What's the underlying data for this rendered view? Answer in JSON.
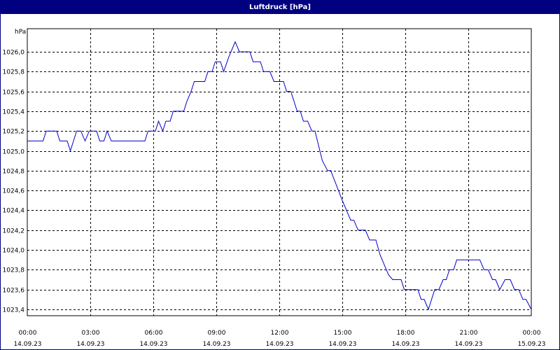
{
  "window": {
    "title": "Luftdruck [hPa]"
  },
  "colors": {
    "title_bar": "#000080",
    "series_line": "#0000cc",
    "grid": "#000000",
    "background": "#ffffff"
  },
  "chart_data": {
    "type": "line",
    "title": "Luftdruck [hPa]",
    "ylabel": "hPa",
    "xlabel": "",
    "ylim": [
      1023.3,
      1026.2
    ],
    "xlim": [
      "14.09.23 00:00",
      "15.09.23 00:00"
    ],
    "grid": true,
    "legend": "none",
    "y_ticks": [
      {
        "value": 1023.4,
        "label": "1023,4"
      },
      {
        "value": 1023.6,
        "label": "1023,6"
      },
      {
        "value": 1023.8,
        "label": "1023,8"
      },
      {
        "value": 1024.0,
        "label": "1024,0"
      },
      {
        "value": 1024.2,
        "label": "1024,2"
      },
      {
        "value": 1024.4,
        "label": "1024,4"
      },
      {
        "value": 1024.6,
        "label": "1024,6"
      },
      {
        "value": 1024.8,
        "label": "1024,8"
      },
      {
        "value": 1025.0,
        "label": "1025,0"
      },
      {
        "value": 1025.2,
        "label": "1025,2"
      },
      {
        "value": 1025.4,
        "label": "1025,4"
      },
      {
        "value": 1025.6,
        "label": "1025,6"
      },
      {
        "value": 1025.8,
        "label": "1025,8"
      },
      {
        "value": 1026.0,
        "label": "1026,0"
      }
    ],
    "x_ticks": [
      {
        "hour": 0,
        "time": "00:00",
        "date": "14.09.23"
      },
      {
        "hour": 3,
        "time": "03:00",
        "date": "14.09.23"
      },
      {
        "hour": 6,
        "time": "06:00",
        "date": "14.09.23"
      },
      {
        "hour": 9,
        "time": "09:00",
        "date": "14.09.23"
      },
      {
        "hour": 12,
        "time": "12:00",
        "date": "14.09.23"
      },
      {
        "hour": 15,
        "time": "15:00",
        "date": "14.09.23"
      },
      {
        "hour": 18,
        "time": "18:00",
        "date": "14.09.23"
      },
      {
        "hour": 21,
        "time": "21:00",
        "date": "14.09.23"
      },
      {
        "hour": 24,
        "time": "00:00",
        "date": "15.09.23"
      }
    ],
    "series": [
      {
        "color": "#0000cc",
        "points": [
          [
            0.0,
            1025.1
          ],
          [
            0.75,
            1025.1
          ],
          [
            0.9,
            1025.2
          ],
          [
            1.4,
            1025.2
          ],
          [
            1.55,
            1025.1
          ],
          [
            1.9,
            1025.1
          ],
          [
            2.05,
            1025.0
          ],
          [
            2.35,
            1025.2
          ],
          [
            2.55,
            1025.2
          ],
          [
            2.75,
            1025.1
          ],
          [
            2.95,
            1025.2
          ],
          [
            3.3,
            1025.2
          ],
          [
            3.45,
            1025.1
          ],
          [
            3.65,
            1025.1
          ],
          [
            3.8,
            1025.2
          ],
          [
            4.0,
            1025.1
          ],
          [
            5.6,
            1025.1
          ],
          [
            5.75,
            1025.2
          ],
          [
            6.1,
            1025.2
          ],
          [
            6.25,
            1025.3
          ],
          [
            6.45,
            1025.2
          ],
          [
            6.6,
            1025.3
          ],
          [
            6.8,
            1025.3
          ],
          [
            6.95,
            1025.4
          ],
          [
            7.45,
            1025.4
          ],
          [
            7.6,
            1025.5
          ],
          [
            7.8,
            1025.6
          ],
          [
            7.95,
            1025.7
          ],
          [
            8.45,
            1025.7
          ],
          [
            8.6,
            1025.8
          ],
          [
            8.8,
            1025.8
          ],
          [
            8.95,
            1025.9
          ],
          [
            9.2,
            1025.9
          ],
          [
            9.35,
            1025.8
          ],
          [
            9.6,
            1025.95
          ],
          [
            9.9,
            1026.1
          ],
          [
            10.1,
            1026.0
          ],
          [
            10.6,
            1026.0
          ],
          [
            10.75,
            1025.9
          ],
          [
            11.1,
            1025.9
          ],
          [
            11.25,
            1025.8
          ],
          [
            11.55,
            1025.8
          ],
          [
            11.75,
            1025.7
          ],
          [
            12.2,
            1025.7
          ],
          [
            12.35,
            1025.6
          ],
          [
            12.55,
            1025.6
          ],
          [
            12.85,
            1025.4
          ],
          [
            13.0,
            1025.4
          ],
          [
            13.15,
            1025.3
          ],
          [
            13.35,
            1025.3
          ],
          [
            13.55,
            1025.2
          ],
          [
            13.7,
            1025.2
          ],
          [
            14.05,
            1024.9
          ],
          [
            14.3,
            1024.8
          ],
          [
            14.45,
            1024.8
          ],
          [
            15.0,
            1024.5
          ],
          [
            15.4,
            1024.3
          ],
          [
            15.55,
            1024.3
          ],
          [
            15.75,
            1024.2
          ],
          [
            16.1,
            1024.2
          ],
          [
            16.3,
            1024.1
          ],
          [
            16.6,
            1024.1
          ],
          [
            16.8,
            1023.95
          ],
          [
            17.2,
            1023.75
          ],
          [
            17.4,
            1023.7
          ],
          [
            17.8,
            1023.7
          ],
          [
            17.95,
            1023.6
          ],
          [
            18.6,
            1023.6
          ],
          [
            18.75,
            1023.5
          ],
          [
            18.9,
            1023.5
          ],
          [
            19.1,
            1023.4
          ],
          [
            19.4,
            1023.6
          ],
          [
            19.6,
            1023.6
          ],
          [
            19.8,
            1023.7
          ],
          [
            19.95,
            1023.7
          ],
          [
            20.1,
            1023.8
          ],
          [
            20.3,
            1023.8
          ],
          [
            20.45,
            1023.9
          ],
          [
            21.55,
            1023.9
          ],
          [
            21.75,
            1023.8
          ],
          [
            21.95,
            1023.8
          ],
          [
            22.15,
            1023.7
          ],
          [
            22.3,
            1023.7
          ],
          [
            22.5,
            1023.6
          ],
          [
            22.75,
            1023.7
          ],
          [
            23.0,
            1023.7
          ],
          [
            23.2,
            1023.6
          ],
          [
            23.4,
            1023.6
          ],
          [
            23.6,
            1023.5
          ],
          [
            23.75,
            1023.5
          ],
          [
            24.0,
            1023.4
          ]
        ]
      }
    ]
  }
}
